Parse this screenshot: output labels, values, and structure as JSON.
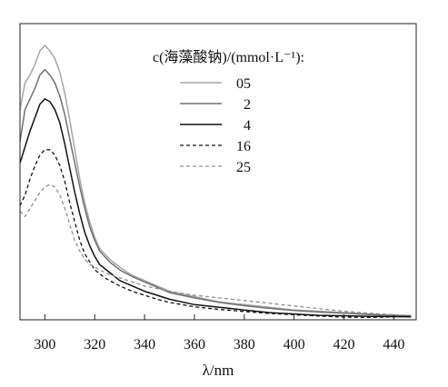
{
  "chart_data": {
    "type": "line",
    "title": "",
    "xlabel": "λ/nm",
    "ylabel": "",
    "xlim": [
      290,
      449
    ],
    "ylim": [
      0,
      1
    ],
    "x_ticks": [
      "300",
      "320",
      "340",
      "360",
      "380",
      "400",
      "420",
      "440"
    ],
    "x_tick_values": [
      300,
      320,
      340,
      360,
      380,
      400,
      420,
      440
    ],
    "y_ticks": [],
    "grid": false,
    "legend": {
      "title": "c(海藻酸钠)/(mmol·L⁻¹):",
      "placement": "top-right"
    },
    "series": [
      {
        "name": "05",
        "color": "#a6a6a6",
        "dash": "solid",
        "points": [
          [
            290,
            0.78
          ],
          [
            292,
            0.88
          ],
          [
            294,
            0.91
          ],
          [
            296,
            0.95
          ],
          [
            298,
            1.0
          ],
          [
            300,
            1.02
          ],
          [
            302,
            1.0
          ],
          [
            304,
            0.97
          ],
          [
            306,
            0.92
          ],
          [
            308,
            0.84
          ],
          [
            310,
            0.74
          ],
          [
            312,
            0.63
          ],
          [
            314,
            0.52
          ],
          [
            316,
            0.43
          ],
          [
            318,
            0.36
          ],
          [
            320,
            0.3
          ],
          [
            322,
            0.26
          ],
          [
            326,
            0.22
          ],
          [
            330,
            0.19
          ],
          [
            335,
            0.16
          ],
          [
            340,
            0.14
          ],
          [
            345,
            0.12
          ],
          [
            350,
            0.1
          ],
          [
            360,
            0.08
          ],
          [
            370,
            0.06
          ],
          [
            380,
            0.05
          ],
          [
            390,
            0.04
          ],
          [
            400,
            0.03
          ],
          [
            410,
            0.025
          ],
          [
            420,
            0.02
          ],
          [
            430,
            0.015
          ],
          [
            440,
            0.01
          ],
          [
            447,
            0.008
          ]
        ]
      },
      {
        "name": "2",
        "color": "#707070",
        "dash": "solid",
        "points": [
          [
            290,
            0.66
          ],
          [
            292,
            0.78
          ],
          [
            294,
            0.82
          ],
          [
            296,
            0.86
          ],
          [
            298,
            0.91
          ],
          [
            300,
            0.93
          ],
          [
            302,
            0.91
          ],
          [
            304,
            0.88
          ],
          [
            306,
            0.83
          ],
          [
            308,
            0.76
          ],
          [
            310,
            0.67
          ],
          [
            312,
            0.58
          ],
          [
            314,
            0.49
          ],
          [
            316,
            0.41
          ],
          [
            318,
            0.34
          ],
          [
            320,
            0.29
          ],
          [
            322,
            0.25
          ],
          [
            326,
            0.21
          ],
          [
            330,
            0.18
          ],
          [
            335,
            0.155
          ],
          [
            340,
            0.135
          ],
          [
            345,
            0.115
          ],
          [
            350,
            0.095
          ],
          [
            360,
            0.075
          ],
          [
            370,
            0.058
          ],
          [
            380,
            0.046
          ],
          [
            390,
            0.036
          ],
          [
            400,
            0.028
          ],
          [
            410,
            0.022
          ],
          [
            420,
            0.018
          ],
          [
            430,
            0.013
          ],
          [
            440,
            0.009
          ],
          [
            447,
            0.007
          ]
        ]
      },
      {
        "name": "4",
        "color": "#111111",
        "dash": "solid",
        "points": [
          [
            290,
            0.58
          ],
          [
            292,
            0.64
          ],
          [
            294,
            0.7
          ],
          [
            296,
            0.75
          ],
          [
            298,
            0.8
          ],
          [
            300,
            0.82
          ],
          [
            302,
            0.81
          ],
          [
            304,
            0.78
          ],
          [
            306,
            0.73
          ],
          [
            308,
            0.65
          ],
          [
            310,
            0.56
          ],
          [
            312,
            0.47
          ],
          [
            314,
            0.39
          ],
          [
            316,
            0.32
          ],
          [
            318,
            0.27
          ],
          [
            320,
            0.23
          ],
          [
            322,
            0.2
          ],
          [
            326,
            0.17
          ],
          [
            330,
            0.14
          ],
          [
            335,
            0.12
          ],
          [
            340,
            0.1
          ],
          [
            345,
            0.085
          ],
          [
            350,
            0.07
          ],
          [
            360,
            0.05
          ],
          [
            370,
            0.04
          ],
          [
            380,
            0.03
          ],
          [
            390,
            0.02
          ],
          [
            400,
            0.015
          ],
          [
            410,
            0.01
          ],
          [
            420,
            0.008
          ],
          [
            430,
            0.006
          ],
          [
            440,
            0.005
          ],
          [
            447,
            0.004
          ]
        ]
      },
      {
        "name": "16",
        "color": "#111111",
        "dash": "dashed",
        "points": [
          [
            290,
            0.42
          ],
          [
            292,
            0.46
          ],
          [
            294,
            0.52
          ],
          [
            296,
            0.57
          ],
          [
            298,
            0.61
          ],
          [
            300,
            0.63
          ],
          [
            302,
            0.63
          ],
          [
            304,
            0.61
          ],
          [
            306,
            0.57
          ],
          [
            308,
            0.51
          ],
          [
            310,
            0.43
          ],
          [
            312,
            0.36
          ],
          [
            314,
            0.29
          ],
          [
            316,
            0.24
          ],
          [
            318,
            0.21
          ],
          [
            320,
            0.18
          ],
          [
            324,
            0.15
          ],
          [
            330,
            0.12
          ],
          [
            335,
            0.1
          ],
          [
            340,
            0.085
          ],
          [
            345,
            0.07
          ],
          [
            350,
            0.058
          ],
          [
            360,
            0.042
          ],
          [
            370,
            0.032
          ],
          [
            380,
            0.024
          ],
          [
            390,
            0.017
          ],
          [
            400,
            0.012
          ],
          [
            410,
            0.007
          ],
          [
            420,
            0.003
          ],
          [
            430,
            0.002
          ],
          [
            440,
            0.004
          ],
          [
            447,
            0.006
          ]
        ]
      },
      {
        "name": "25",
        "color": "#8f8f8f",
        "dash": "dashed",
        "points": [
          [
            290,
            0.4
          ],
          [
            292,
            0.38
          ],
          [
            294,
            0.41
          ],
          [
            296,
            0.44
          ],
          [
            298,
            0.47
          ],
          [
            300,
            0.49
          ],
          [
            302,
            0.5
          ],
          [
            304,
            0.49
          ],
          [
            306,
            0.46
          ],
          [
            308,
            0.41
          ],
          [
            310,
            0.35
          ],
          [
            312,
            0.29
          ],
          [
            314,
            0.25
          ],
          [
            316,
            0.22
          ],
          [
            318,
            0.2
          ],
          [
            320,
            0.19
          ],
          [
            324,
            0.17
          ],
          [
            330,
            0.15
          ],
          [
            335,
            0.135
          ],
          [
            340,
            0.12
          ],
          [
            345,
            0.11
          ],
          [
            350,
            0.1
          ],
          [
            360,
            0.085
          ],
          [
            370,
            0.075
          ],
          [
            380,
            0.065
          ],
          [
            390,
            0.055
          ],
          [
            400,
            0.045
          ],
          [
            410,
            0.035
          ],
          [
            420,
            0.025
          ],
          [
            430,
            0.018
          ],
          [
            440,
            0.012
          ],
          [
            447,
            0.01
          ]
        ]
      }
    ]
  }
}
